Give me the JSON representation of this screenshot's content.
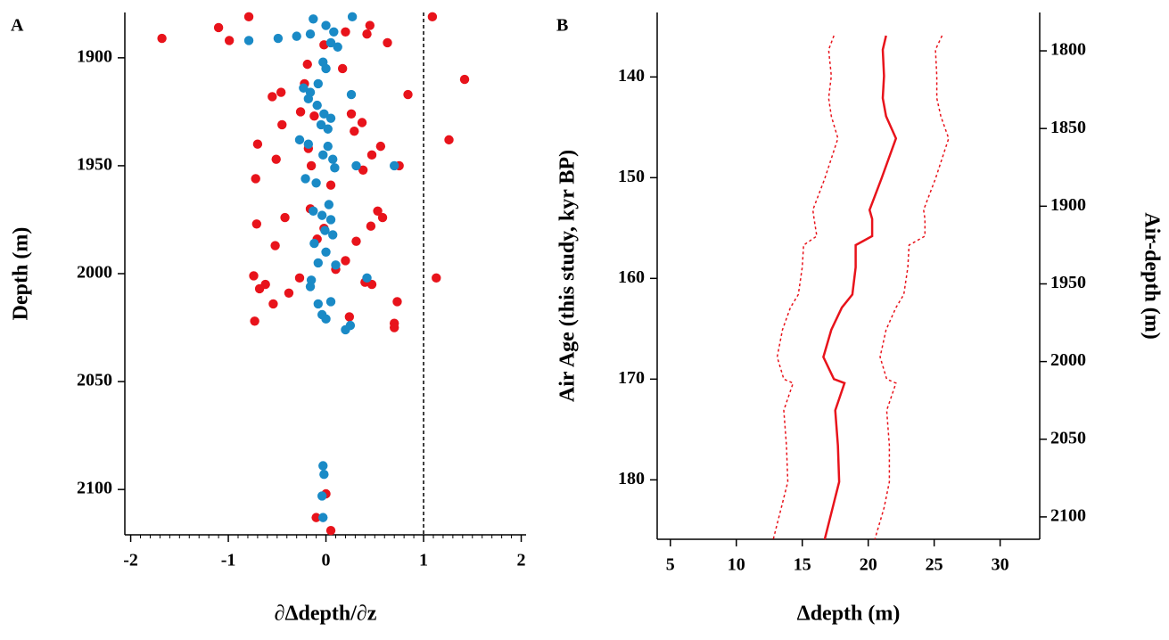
{
  "chart_data": [
    {
      "type": "scatter",
      "panel": "A",
      "xlabel": "∂Δdepth/∂z",
      "ylabel": "Depth (m)",
      "xlim": [
        -2.06,
        2.05
      ],
      "xticks": [
        -2,
        -1,
        0,
        1,
        2
      ],
      "minor_ticks": true,
      "ylim": [
        1879,
        2121
      ],
      "yticks": [
        1900,
        1950,
        2000,
        2050,
        2100
      ],
      "y_inverted": true,
      "vline": 1,
      "series": [
        {
          "color": "#e8131b",
          "x": [
            1.09,
            -0.79,
            -1.1,
            -1.68,
            -0.99,
            0.45,
            0.42,
            0.2,
            0.63,
            -0.02,
            -0.19,
            0.17,
            1.42,
            0.84,
            -0.46,
            -0.55,
            -0.22,
            -0.26,
            -0.45,
            0.26,
            0.37,
            0.29,
            -0.12,
            1.26,
            -0.7,
            0.56,
            -0.18,
            0.47,
            -0.51,
            -0.15,
            0.38,
            0.75,
            -0.72,
            0.05,
            -0.42,
            -0.71,
            0.53,
            0.58,
            0.46,
            -0.16,
            -0.02,
            -0.09,
            0.31,
            -0.52,
            0.2,
            -0.74,
            -0.27,
            1.13,
            0.1,
            -0.62,
            -0.68,
            0.47,
            0.4,
            -0.38,
            -0.54,
            0.73,
            0.24,
            -0.73,
            0.7,
            0.7,
            0,
            -0.1,
            0.05
          ],
          "values": [
            1881,
            1881,
            1886,
            1891,
            1892,
            1885,
            1889,
            1888,
            1893,
            1894,
            1903,
            1905,
            1910,
            1917,
            1916,
            1918,
            1912,
            1925,
            1931,
            1926,
            1930,
            1934,
            1927,
            1938,
            1940,
            1941,
            1942,
            1945,
            1947,
            1950,
            1952,
            1950,
            1956,
            1959,
            1974,
            1977,
            1971,
            1974,
            1978,
            1970,
            1979,
            1984,
            1985,
            1987,
            1994,
            2001,
            2002,
            2002,
            1998,
            2005,
            2007,
            2005,
            2004,
            2009,
            2014,
            2013,
            2020,
            2022,
            2023,
            2025,
            2102,
            2113,
            2119
          ]
        },
        {
          "color": "#1a8ac6",
          "x": [
            0.27,
            -0.13,
            0,
            0.08,
            -0.16,
            -0.49,
            -0.79,
            -0.3,
            0.05,
            0.12,
            -0.03,
            0,
            -0.08,
            -0.23,
            -0.16,
            -0.18,
            0.26,
            -0.09,
            -0.02,
            0.05,
            -0.05,
            0.02,
            -0.27,
            -0.18,
            0.02,
            -0.03,
            0.07,
            0.31,
            0.09,
            0.7,
            -0.21,
            -0.1,
            0.03,
            -0.13,
            -0.04,
            0.05,
            -0.01,
            0.07,
            -0.12,
            0,
            -0.08,
            0.1,
            0.42,
            -0.15,
            -0.16,
            0.05,
            -0.08,
            -0.04,
            0,
            0.25,
            0.2,
            -0.03,
            -0.02,
            -0.04,
            -0.03
          ],
          "values": [
            1881,
            1882,
            1885,
            1888,
            1889,
            1891,
            1892,
            1890,
            1893,
            1895,
            1902,
            1905,
            1912,
            1914,
            1916,
            1919,
            1917,
            1922,
            1926,
            1928,
            1931,
            1933,
            1938,
            1940,
            1941,
            1945,
            1947,
            1950,
            1951,
            1950,
            1956,
            1958,
            1968,
            1971,
            1973,
            1975,
            1980,
            1982,
            1986,
            1990,
            1995,
            1996,
            2002,
            2003,
            2006,
            2013,
            2014,
            2019,
            2021,
            2024,
            2026,
            2089,
            2093,
            2103,
            2113
          ]
        }
      ]
    },
    {
      "type": "line",
      "panel": "B",
      "xlabel": "Δdepth (m)",
      "ylabel": "Air Age (this study, kyr BP)",
      "y2label": "Air-depth (m)",
      "xlim": [
        4,
        33
      ],
      "xticks": [
        5,
        10,
        15,
        20,
        25,
        30
      ],
      "ylim": [
        133.6,
        185.9
      ],
      "yticks": [
        140,
        150,
        160,
        170,
        180
      ],
      "y_inverted": true,
      "y2lim": [
        1775.3,
        2114.4
      ],
      "y2ticks": [
        1800,
        1850,
        1900,
        1950,
        2000,
        2050,
        2100
      ],
      "y": [
        135.9,
        137.3,
        139.9,
        142.1,
        143.9,
        146.1,
        150.1,
        153.2,
        154.1,
        155.8,
        156.7,
        158.9,
        161.6,
        162.9,
        165.1,
        167.8,
        170.0,
        170.4,
        173.1,
        176.6,
        180.2,
        182.8,
        185.9
      ],
      "series": [
        {
          "color": "#e8131b",
          "dash": false,
          "values": [
            21.35,
            21.1,
            21.2,
            21.1,
            21.35,
            22.1,
            21.0,
            20.1,
            20.3,
            20.3,
            19.05,
            19.05,
            18.8,
            18.0,
            17.2,
            16.6,
            17.4,
            18.2,
            17.5,
            17.7,
            17.8,
            17.3,
            16.7
          ]
        },
        {
          "color": "#e8131b",
          "dash": true,
          "values": [
            25.6,
            25.1,
            25.2,
            25.2,
            25.5,
            26.1,
            25.1,
            24.2,
            24.3,
            24.3,
            23.1,
            23.0,
            22.7,
            22.1,
            21.35,
            20.9,
            21.4,
            22.1,
            21.4,
            21.6,
            21.6,
            21.2,
            20.5
          ]
        },
        {
          "color": "#e8131b",
          "dash": true,
          "values": [
            17.4,
            17.0,
            17.2,
            17.0,
            17.2,
            17.7,
            16.7,
            15.8,
            15.9,
            16.1,
            15.1,
            15.0,
            14.7,
            14.1,
            13.5,
            13.1,
            13.6,
            14.3,
            13.6,
            13.8,
            13.9,
            13.4,
            12.8
          ]
        }
      ]
    }
  ]
}
